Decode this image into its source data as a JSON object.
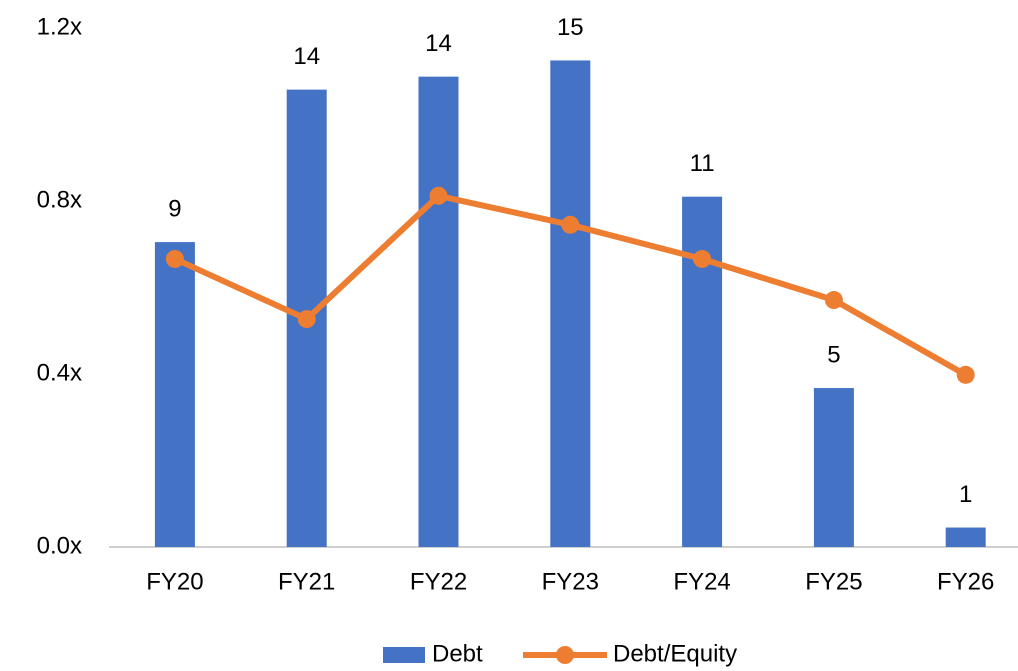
{
  "chart_data": {
    "type": "bar_line",
    "categories": [
      "FY20",
      "FY21",
      "FY22",
      "FY23",
      "FY24",
      "FY25",
      "FY26"
    ],
    "series": [
      {
        "name": "Debt",
        "type": "bar",
        "color": "#4472c4",
        "axis": "y2",
        "values": [
          9.4,
          14.1,
          14.5,
          15.0,
          10.8,
          4.9,
          0.6
        ],
        "value_labels": [
          "9",
          "14",
          "14",
          "15",
          "11",
          "5",
          "1"
        ]
      },
      {
        "name": "Debt/Equity",
        "type": "line",
        "color": "#ed7d31",
        "values": [
          0.666,
          0.527,
          0.812,
          0.745,
          0.666,
          0.571,
          0.398
        ]
      }
    ],
    "ylim": [
      0,
      1.2
    ],
    "yticks": [
      {
        "value": 0,
        "label": "0.0x"
      },
      {
        "value": 0.4,
        "label": "0.4x"
      },
      {
        "value": 0.8,
        "label": "0.8x"
      },
      {
        "value": 1.2,
        "label": "1.2x"
      }
    ],
    "y2lim": [
      0,
      16
    ],
    "grid": false,
    "legend": "bottom"
  }
}
